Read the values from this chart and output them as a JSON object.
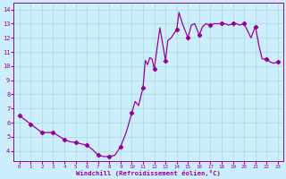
{
  "hours": [
    0,
    1,
    2,
    3,
    4,
    5,
    6,
    7,
    8,
    9,
    10,
    11,
    12,
    13,
    14,
    15,
    16,
    17,
    18,
    19,
    20,
    21,
    22,
    23
  ],
  "values": [
    6.5,
    5.9,
    5.3,
    5.3,
    4.8,
    4.6,
    4.4,
    3.7,
    3.6,
    4.3,
    6.7,
    8.5,
    9.8,
    10.4,
    12.6,
    12.0,
    12.2,
    12.9,
    13.0,
    13.0,
    13.0,
    12.8,
    10.5,
    10.3
  ],
  "sub_points": [
    [
      0.0,
      6.5
    ],
    [
      1.0,
      5.9
    ],
    [
      2.0,
      5.3
    ],
    [
      3.0,
      5.3
    ],
    [
      4.0,
      4.8
    ],
    [
      4.5,
      4.65
    ],
    [
      5.0,
      4.6
    ],
    [
      5.5,
      4.5
    ],
    [
      6.0,
      4.4
    ],
    [
      6.5,
      4.1
    ],
    [
      7.0,
      3.7
    ],
    [
      7.5,
      3.6
    ],
    [
      8.0,
      3.6
    ],
    [
      8.5,
      3.7
    ],
    [
      9.0,
      4.3
    ],
    [
      9.5,
      5.3
    ],
    [
      10.0,
      6.7
    ],
    [
      10.3,
      7.5
    ],
    [
      10.6,
      7.2
    ],
    [
      11.0,
      8.5
    ],
    [
      11.2,
      10.4
    ],
    [
      11.4,
      10.1
    ],
    [
      11.6,
      10.6
    ],
    [
      11.8,
      10.5
    ],
    [
      12.0,
      9.8
    ],
    [
      12.2,
      11.0
    ],
    [
      12.5,
      12.7
    ],
    [
      13.0,
      10.4
    ],
    [
      13.2,
      11.8
    ],
    [
      13.5,
      12.0
    ],
    [
      14.0,
      12.6
    ],
    [
      14.2,
      13.8
    ],
    [
      14.5,
      13.0
    ],
    [
      15.0,
      12.0
    ],
    [
      15.3,
      12.9
    ],
    [
      15.6,
      13.0
    ],
    [
      16.0,
      12.2
    ],
    [
      16.3,
      12.8
    ],
    [
      16.6,
      13.0
    ],
    [
      17.0,
      12.9
    ],
    [
      17.3,
      13.0
    ],
    [
      17.6,
      13.0
    ],
    [
      18.0,
      13.0
    ],
    [
      18.3,
      13.0
    ],
    [
      18.6,
      12.9
    ],
    [
      19.0,
      13.0
    ],
    [
      19.3,
      13.0
    ],
    [
      19.6,
      12.9
    ],
    [
      20.0,
      13.0
    ],
    [
      20.3,
      12.5
    ],
    [
      20.6,
      12.0
    ],
    [
      21.0,
      12.8
    ],
    [
      21.3,
      11.5
    ],
    [
      21.6,
      10.5
    ],
    [
      22.0,
      10.5
    ],
    [
      22.3,
      10.3
    ],
    [
      22.6,
      10.2
    ],
    [
      23.0,
      10.3
    ]
  ],
  "marker_hours": [
    0,
    1,
    2,
    3,
    4,
    5,
    6,
    7,
    8,
    9,
    10,
    11,
    12,
    13,
    14,
    15,
    16,
    17,
    18,
    19,
    20,
    21,
    22,
    23
  ],
  "marker_values": [
    6.5,
    5.9,
    5.3,
    5.3,
    4.8,
    4.6,
    4.4,
    3.7,
    3.6,
    4.3,
    6.7,
    8.5,
    9.8,
    10.4,
    12.6,
    12.0,
    12.2,
    12.9,
    13.0,
    13.0,
    13.0,
    12.8,
    10.5,
    10.3
  ],
  "line_color": "#990099",
  "marker_color": "#990099",
  "bg_color": "#cceeff",
  "grid_color": "#aaddcc",
  "xlabel": "Windchill (Refroidissement éolien,°C)",
  "xlim": [
    -0.5,
    23.5
  ],
  "ylim": [
    3.3,
    14.5
  ],
  "yticks": [
    4,
    5,
    6,
    7,
    8,
    9,
    10,
    11,
    12,
    13,
    14
  ],
  "xticks": [
    0,
    1,
    2,
    3,
    4,
    5,
    6,
    7,
    8,
    9,
    10,
    11,
    12,
    13,
    14,
    15,
    16,
    17,
    18,
    19,
    20,
    21,
    22,
    23
  ],
  "font_color": "#990099"
}
